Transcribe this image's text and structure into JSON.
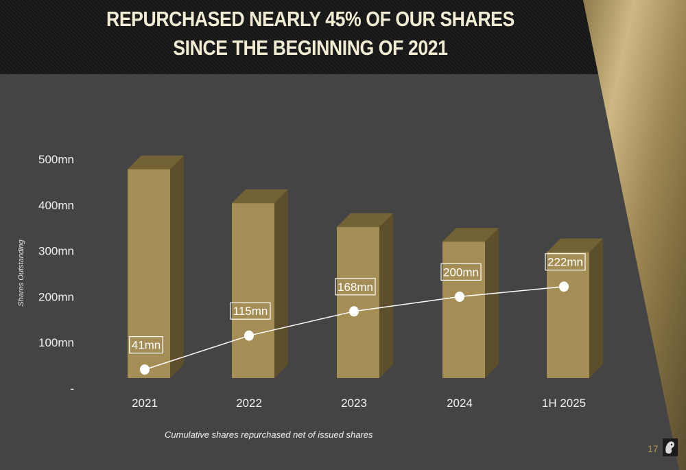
{
  "slide": {
    "title_line1": "REPURCHASED NEARLY 45% OF OUR SHARES",
    "title_line2": "SINCE THE BEGINNING OF 2021",
    "footnote": "Cumulative shares repurchased net of issued shares",
    "page_number": "17"
  },
  "colors": {
    "background": "#444444",
    "bar_front": "#a48e55",
    "bar_top": "#736235",
    "bar_side": "#5e4f2c",
    "line": "#ffffff",
    "gold_accent": "#b49a5a"
  },
  "chart_data": {
    "type": "bar",
    "title": "",
    "xlabel": "",
    "ylabel": "Shares Outstanding",
    "ylim": [
      0,
      500
    ],
    "y_ticks": [
      {
        "value": 0,
        "label": "-"
      },
      {
        "value": 100,
        "label": "100mn"
      },
      {
        "value": 200,
        "label": "200mn"
      },
      {
        "value": 300,
        "label": "300mn"
      },
      {
        "value": 400,
        "label": "400mn"
      },
      {
        "value": 500,
        "label": "500mn"
      }
    ],
    "categories": [
      "2021",
      "2022",
      "2023",
      "2024",
      "1H 2025"
    ],
    "grid": false,
    "series": [
      {
        "values": [
          478,
          404,
          352,
          320,
          297
        ]
      },
      {
        "values": [
          41,
          115,
          168,
          200,
          222
        ],
        "labels": [
          "41mn",
          "115mn",
          "168mn",
          "200mn",
          "222mn"
        ]
      }
    ]
  }
}
